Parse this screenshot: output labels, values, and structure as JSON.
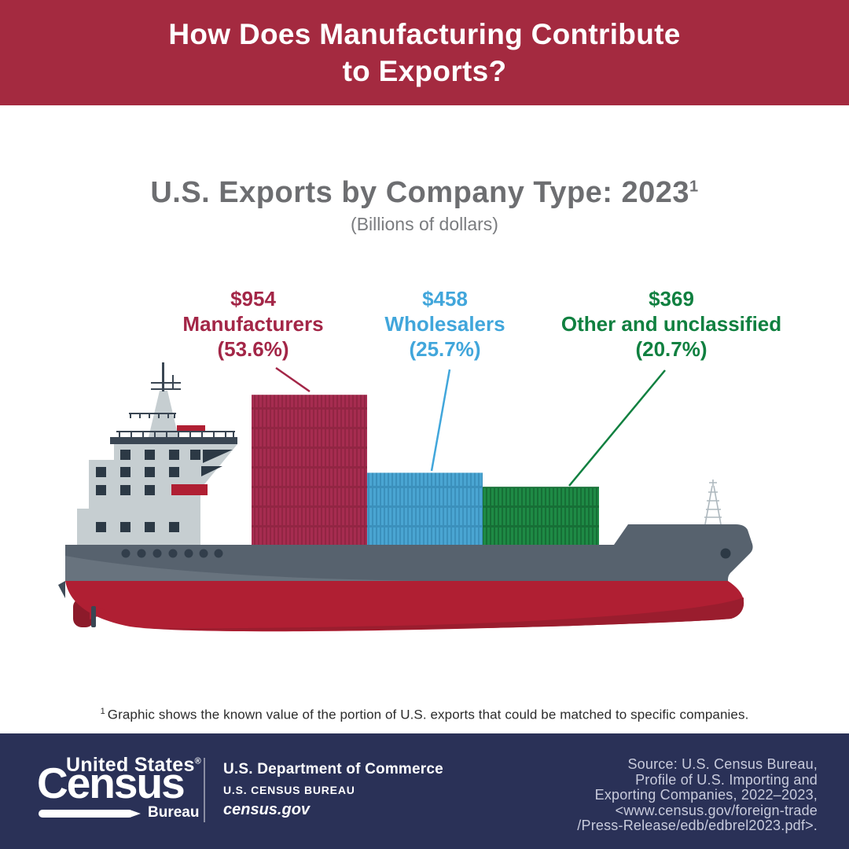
{
  "banner": {
    "bg_color": "#A42A40",
    "title_lines": [
      "How Does Manufacturing Contribute",
      "to Exports?"
    ]
  },
  "chart": {
    "title": "U.S. Exports by Company Type: 2023",
    "title_superscript": "1",
    "subtitle": "(Billions of dollars)",
    "title_color": "#6D6E71"
  },
  "chart_data": {
    "type": "bar",
    "title": "U.S. Exports by Company Type: 2023",
    "subtitle": "(Billions of dollars)",
    "unit": "billions of USD",
    "categories": [
      "Manufacturers",
      "Wholesalers",
      "Other and unclassified"
    ],
    "values": [
      954,
      458,
      369
    ],
    "percentages": [
      53.6,
      25.7,
      20.7
    ],
    "colors": [
      "#A62C50",
      "#4AA5D2",
      "#1E8A45"
    ],
    "layout": "bars drawn as container stacks on a cargo-ship illustration; labels with leader lines above each stack; bar heights proportional to values"
  },
  "labels": [
    {
      "value": "$954",
      "name": "Manufacturers",
      "pct": "(53.6%)",
      "color": "#A32647"
    },
    {
      "value": "$458",
      "name": "Wholesalers",
      "pct": "(25.7%)",
      "color": "#41A6DB"
    },
    {
      "value": "$369",
      "name": "Other and unclassified",
      "pct": "(20.7%)",
      "color": "#108040"
    }
  ],
  "footnote": {
    "superscript": "1",
    "text": "Graphic shows the known value of the portion of U.S. exports that could be matched to specific companies."
  },
  "footer": {
    "bg_color": "#2A3157",
    "logo": {
      "line1": "United States",
      "registered": "®",
      "line2": "Census",
      "line3": "Bureau"
    },
    "commerce": {
      "line1": "U.S. Department of Commerce",
      "line2": "U.S. CENSUS BUREAU",
      "line3": "census.gov"
    },
    "source_lines": [
      "Source: U.S. Census Bureau,",
      "Profile of U.S. Importing and",
      "Exporting Companies, 2022–2023,",
      "<www.census.gov/foreign-trade",
      "/Press-Release/edb/edbrel2023.pdf>."
    ]
  }
}
